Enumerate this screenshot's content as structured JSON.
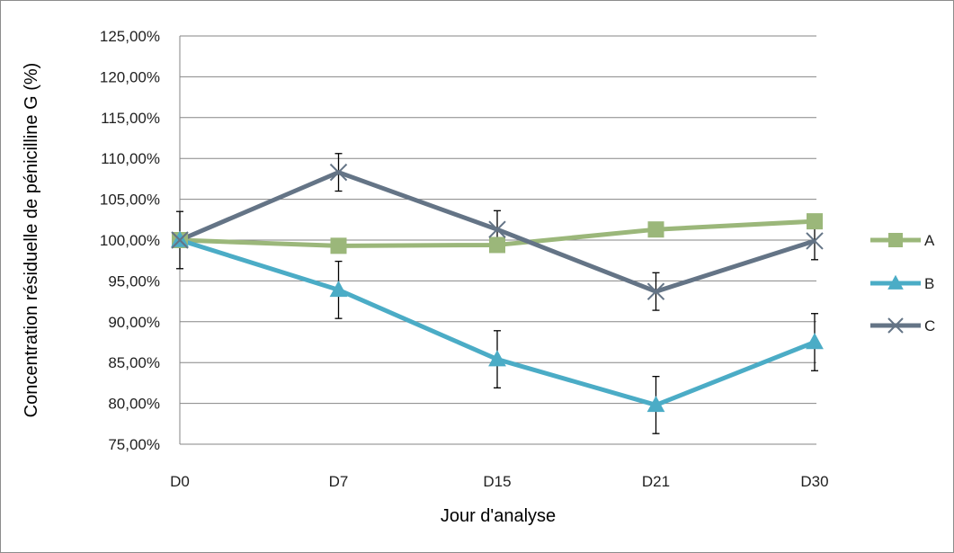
{
  "chart_data": {
    "type": "line",
    "title": "",
    "xlabel": "Jour d'analyse",
    "ylabel": "Concentration résiduelle de pénicilline G (%)",
    "categories": [
      "D0",
      "D7",
      "D15",
      "D21",
      "D30"
    ],
    "y_ticks": [
      "75,00%",
      "80,00%",
      "85,00%",
      "90,00%",
      "95,00%",
      "100,00%",
      "105,00%",
      "110,00%",
      "115,00%",
      "120,00%",
      "125,00%"
    ],
    "ylim": [
      75,
      125
    ],
    "y_step": 5,
    "grid": true,
    "legend_position": "right",
    "series": [
      {
        "name": "A",
        "color": "#9bb77a",
        "marker": "square",
        "values": [
          100.0,
          99.3,
          99.4,
          101.3,
          102.3
        ],
        "errors": [
          0,
          0,
          0,
          0,
          0
        ]
      },
      {
        "name": "B",
        "color": "#4bacc6",
        "marker": "triangle",
        "values": [
          100.0,
          93.9,
          85.4,
          79.8,
          87.5
        ],
        "errors": [
          0,
          3.5,
          3.5,
          3.5,
          3.5
        ]
      },
      {
        "name": "C",
        "color": "#647486",
        "marker": "x",
        "values": [
          100.0,
          108.3,
          101.3,
          93.7,
          99.9
        ],
        "errors": [
          3.5,
          2.3,
          2.3,
          2.3,
          2.3
        ]
      }
    ]
  }
}
